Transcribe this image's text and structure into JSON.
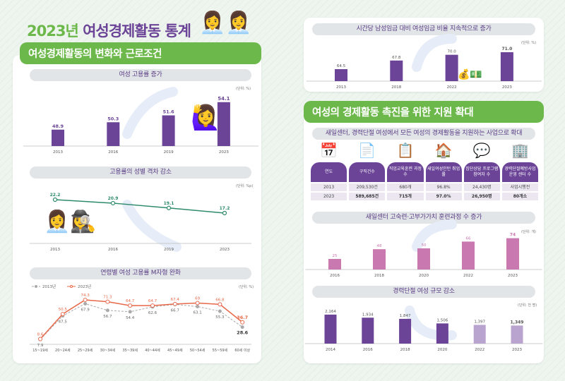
{
  "header": {
    "year": "2023년",
    "title": "여성경제활동 통계"
  },
  "left": {
    "banner": "여성경제활동의 변화와 근로조건"
  },
  "right": {
    "banner": "여성의 경제활동 촉진을 위한 지원 확대"
  },
  "colors": {
    "purple": "#6b4497",
    "green": "#6cb84a",
    "line_green": "#2e8b6a",
    "orange": "#e8684a",
    "gray": "#aaaaaa",
    "pink": "#c978b0",
    "light_purple": "#b9a3cf"
  },
  "chart_data": [
    {
      "id": "emp",
      "type": "bar",
      "title": "여성 고용률 증가",
      "unit": "(단위: %)",
      "categories": [
        "2013",
        "2016",
        "2019",
        "2023"
      ],
      "values": [
        48.9,
        50.3,
        51.6,
        54.1
      ]
    },
    {
      "id": "gap",
      "type": "line",
      "title": "고용률의 성별 격차 감소",
      "unit": "(단위: %p)",
      "categories": [
        "2013",
        "2016",
        "2019",
        "2023"
      ],
      "values": [
        22.2,
        20.9,
        19.1,
        17.2
      ]
    },
    {
      "id": "age",
      "type": "line",
      "title": "연령별 여성 고용률 M자형 완화",
      "unit": "(단위: %)",
      "legend_position": "top-left",
      "categories": [
        "15~19세",
        "20~24세",
        "25~29세",
        "30~34세",
        "35~39세",
        "40~44세",
        "45~49세",
        "50~54세",
        "55~59세",
        "60세 이상"
      ],
      "series": [
        {
          "name": "2013년",
          "values": [
            7.9,
            47.5,
            67.9,
            56.7,
            54.4,
            62.6,
            66.7,
            63.1,
            55.3,
            28.6
          ]
        },
        {
          "name": "2023년",
          "values": [
            8.6,
            50.5,
            74.3,
            71.3,
            64.7,
            64.7,
            67.4,
            69,
            66.8,
            36.7
          ]
        }
      ]
    },
    {
      "id": "wage",
      "type": "bar",
      "title": "시간당 남성임금 대비 여성임금 비율 지속적으로 증가",
      "unit": "(단위: %)",
      "categories": [
        "2013",
        "2018",
        "2022",
        "2023"
      ],
      "values": [
        64.5,
        67.8,
        70.0,
        71.0
      ]
    },
    {
      "id": "train",
      "type": "bar",
      "title": "새일센터 고숙련·고부가가치 훈련과정 수 증가",
      "unit": "(단위: 개)",
      "categories": [
        "2016",
        "2018",
        "2020",
        "2022",
        "2023"
      ],
      "values": [
        25,
        48,
        50,
        66,
        74
      ]
    },
    {
      "id": "break",
      "type": "bar",
      "title": "경력단절 여성 규모 감소",
      "unit": "(단위: 천 명)",
      "categories": [
        "2014",
        "2016",
        "2018",
        "2020",
        "2022",
        "2023"
      ],
      "values": [
        2164,
        1934,
        1847,
        1506,
        1397,
        1349
      ]
    }
  ],
  "support_table": {
    "title": "새일센터, 경력단절 여성에서 모든 여성의 경제활동을 지원하는 사업으로 확대",
    "icons": [
      "calendar-icon",
      "resume-icon",
      "clipboard-icon",
      "house-person-icon",
      "chat-group-icon",
      "building-icon"
    ],
    "headers": [
      "연도",
      "구직건수",
      "직업교육훈련 과정 수",
      "새일여성인턴 취업률",
      "집단상담 프로그램 참여자 수",
      "경력단절예방사업 운영 센터 수"
    ],
    "rows": [
      [
        "2013",
        "209,530건",
        "680개",
        "96.8%",
        "24,430명",
        "사업시행전"
      ],
      [
        "2023",
        "589,685건",
        "715개",
        "97.0%",
        "26,950명",
        "80개소"
      ]
    ]
  }
}
